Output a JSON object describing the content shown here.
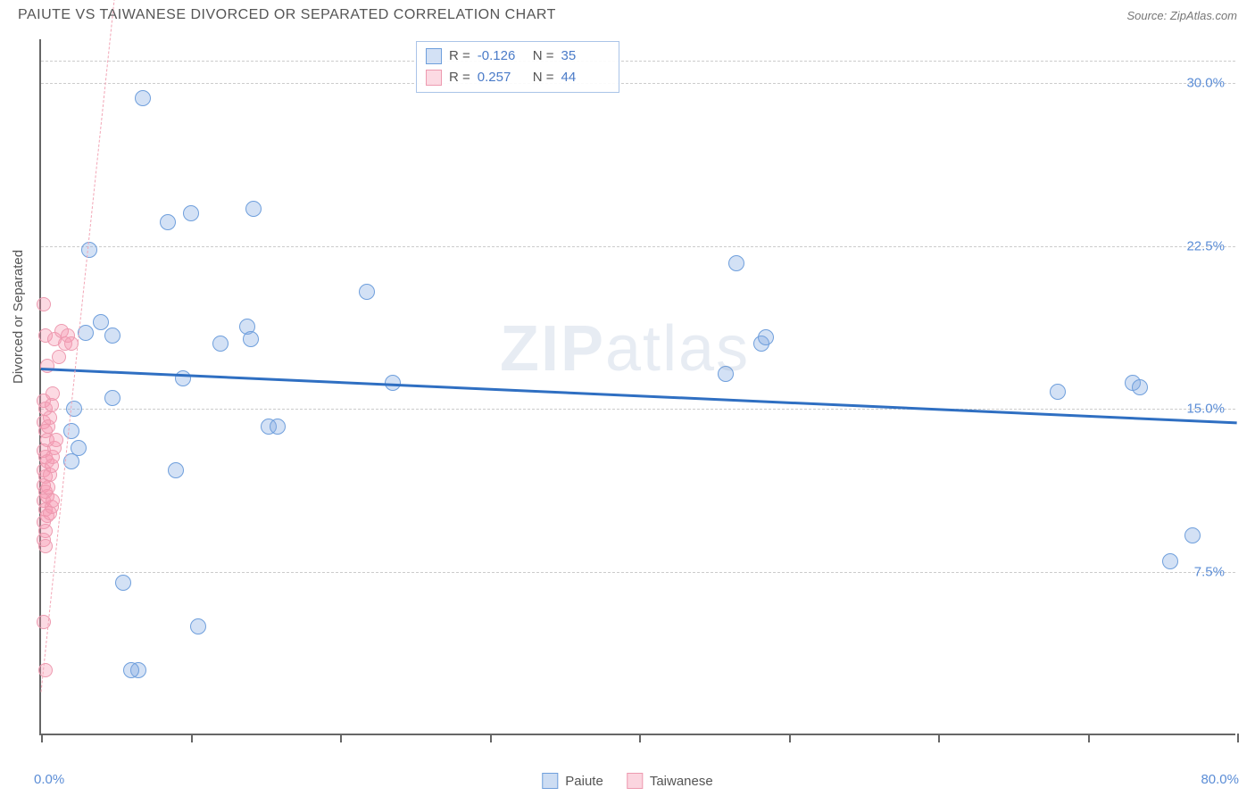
{
  "header": {
    "title": "PAIUTE VS TAIWANESE DIVORCED OR SEPARATED CORRELATION CHART",
    "source": "Source: ZipAtlas.com"
  },
  "watermark": {
    "bold": "ZIP",
    "rest": "atlas"
  },
  "chart": {
    "type": "scatter",
    "ylabel": "Divorced or Separated",
    "xlim": [
      0,
      80
    ],
    "ylim": [
      0,
      32
    ],
    "x_ticks": [
      0,
      10,
      20,
      30,
      40,
      50,
      60,
      70,
      80
    ],
    "x_tick_labels": {
      "min": "0.0%",
      "max": "80.0%"
    },
    "y_ticks": [
      7.5,
      15.0,
      22.5,
      30.0
    ],
    "y_tick_labels": [
      "7.5%",
      "15.0%",
      "22.5%",
      "30.0%"
    ],
    "grid_color": "#cccccc",
    "axis_color": "#666666",
    "background_color": "#ffffff",
    "series": [
      {
        "name": "Paiute",
        "fill": "rgba(130,170,225,0.35)",
        "stroke": "#6f9fdc",
        "marker_radius": 9,
        "trend": {
          "slope": -0.031,
          "intercept": 16.9,
          "color": "#2f6fc2",
          "width": 3
        },
        "points": [
          [
            6.8,
            29.3
          ],
          [
            14.2,
            24.2
          ],
          [
            8.5,
            23.6
          ],
          [
            10.0,
            24.0
          ],
          [
            3.2,
            22.3
          ],
          [
            4.0,
            19.0
          ],
          [
            4.8,
            18.4
          ],
          [
            3.0,
            18.5
          ],
          [
            13.8,
            18.8
          ],
          [
            21.8,
            20.4
          ],
          [
            46.5,
            21.7
          ],
          [
            12.0,
            18.0
          ],
          [
            14.0,
            18.2
          ],
          [
            23.5,
            16.2
          ],
          [
            4.8,
            15.5
          ],
          [
            9.5,
            16.4
          ],
          [
            15.2,
            14.2
          ],
          [
            15.8,
            14.2
          ],
          [
            9.0,
            12.2
          ],
          [
            48.2,
            18.0
          ],
          [
            48.5,
            18.3
          ],
          [
            10.5,
            5.0
          ],
          [
            5.5,
            7.0
          ],
          [
            6.5,
            3.0
          ],
          [
            6.0,
            3.0
          ],
          [
            45.8,
            16.6
          ],
          [
            68.0,
            15.8
          ],
          [
            73.0,
            16.2
          ],
          [
            73.5,
            16.0
          ],
          [
            77.0,
            9.2
          ],
          [
            75.5,
            8.0
          ],
          [
            2.2,
            15.0
          ],
          [
            2.0,
            14.0
          ],
          [
            2.5,
            13.2
          ],
          [
            2.0,
            12.6
          ]
        ]
      },
      {
        "name": "Taiwanese",
        "fill": "rgba(245,150,175,0.35)",
        "stroke": "#ed9ab0",
        "marker_radius": 8,
        "trend": {
          "slope": 6.5,
          "intercept": 2.0,
          "color": "#f2a6b6",
          "dashed": true
        },
        "points": [
          [
            0.2,
            19.8
          ],
          [
            0.3,
            18.4
          ],
          [
            0.9,
            18.2
          ],
          [
            0.4,
            17.0
          ],
          [
            0.2,
            15.4
          ],
          [
            0.3,
            15.0
          ],
          [
            0.2,
            14.4
          ],
          [
            0.3,
            14.0
          ],
          [
            0.4,
            13.6
          ],
          [
            0.2,
            13.1
          ],
          [
            0.3,
            12.8
          ],
          [
            0.4,
            12.6
          ],
          [
            0.2,
            12.2
          ],
          [
            0.3,
            11.9
          ],
          [
            0.2,
            11.5
          ],
          [
            0.3,
            11.2
          ],
          [
            0.4,
            11.0
          ],
          [
            0.2,
            10.8
          ],
          [
            0.3,
            10.4
          ],
          [
            0.4,
            10.1
          ],
          [
            0.2,
            9.8
          ],
          [
            0.3,
            9.4
          ],
          [
            0.2,
            9.0
          ],
          [
            0.3,
            8.7
          ],
          [
            0.6,
            10.2
          ],
          [
            0.7,
            10.5
          ],
          [
            0.8,
            10.8
          ],
          [
            0.5,
            11.4
          ],
          [
            0.6,
            12.0
          ],
          [
            0.7,
            12.4
          ],
          [
            0.8,
            12.8
          ],
          [
            0.9,
            13.2
          ],
          [
            1.0,
            13.6
          ],
          [
            0.5,
            14.2
          ],
          [
            0.6,
            14.6
          ],
          [
            0.7,
            15.2
          ],
          [
            0.8,
            15.7
          ],
          [
            0.2,
            5.2
          ],
          [
            0.3,
            3.0
          ],
          [
            1.4,
            18.6
          ],
          [
            1.6,
            18.0
          ],
          [
            1.2,
            17.4
          ],
          [
            1.8,
            18.4
          ],
          [
            2.0,
            18.0
          ]
        ]
      }
    ],
    "stats": [
      {
        "series": "Paiute",
        "r": "-0.126",
        "n": "35"
      },
      {
        "series": "Taiwanese",
        "r": "0.257",
        "n": "44"
      }
    ],
    "legend": {
      "paiute": {
        "label": "Paiute",
        "fill": "rgba(130,170,225,0.4)",
        "stroke": "#6f9fdc"
      },
      "taiwanese": {
        "label": "Taiwanese",
        "fill": "rgba(245,150,175,0.4)",
        "stroke": "#ed9ab0"
      }
    }
  }
}
